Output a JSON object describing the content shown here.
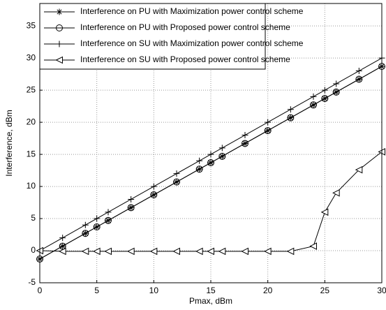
{
  "chart_data": {
    "type": "line",
    "x_label": "Pmax, dBm",
    "y_label": "Interference, dBm",
    "x": [
      0,
      2,
      4,
      5,
      6,
      8,
      10,
      12,
      14,
      15,
      16,
      18,
      20,
      22,
      24,
      25,
      26,
      28,
      30
    ],
    "series": [
      {
        "name": "Interference on PU with Maximization power control scheme",
        "color": "#000000",
        "marker": "star",
        "values": [
          -1.3,
          0.7,
          2.7,
          3.7,
          4.7,
          6.7,
          8.7,
          10.7,
          12.7,
          13.7,
          14.7,
          16.7,
          18.7,
          20.7,
          22.7,
          23.7,
          24.7,
          26.7,
          28.7
        ]
      },
      {
        "name": "Interference on PU with Proposed power control scheme",
        "color": "#000000",
        "marker": "circle",
        "values": [
          -1.3,
          0.7,
          2.7,
          3.7,
          4.7,
          6.7,
          8.7,
          10.7,
          12.7,
          13.7,
          14.7,
          16.7,
          18.7,
          20.7,
          22.7,
          23.7,
          24.7,
          26.7,
          28.7
        ]
      },
      {
        "name": "Interference on SU with Maximization power control scheme",
        "color": "#000000",
        "marker": "plus",
        "values": [
          0,
          2,
          4,
          5,
          6,
          8,
          10,
          12,
          14,
          15,
          16,
          18,
          20,
          22,
          24,
          25,
          26,
          28,
          30
        ]
      },
      {
        "name": "Interference on SU with Proposed power control scheme",
        "color": "#000000",
        "marker": "triangle-left",
        "values": [
          0,
          -0.1,
          -0.1,
          -0.1,
          -0.1,
          -0.1,
          -0.1,
          -0.1,
          -0.1,
          -0.1,
          -0.1,
          -0.1,
          -0.1,
          -0.1,
          0.7,
          6,
          9,
          12.6,
          15.4
        ]
      }
    ],
    "xlim": [
      0,
      30
    ],
    "xticks": [
      0,
      5,
      10,
      15,
      20,
      25,
      30
    ],
    "ylim": [
      -5,
      38.5
    ],
    "yticks": [
      -5,
      0,
      5,
      10,
      15,
      20,
      25,
      30,
      35
    ],
    "grid": true,
    "legend": "upper left"
  }
}
